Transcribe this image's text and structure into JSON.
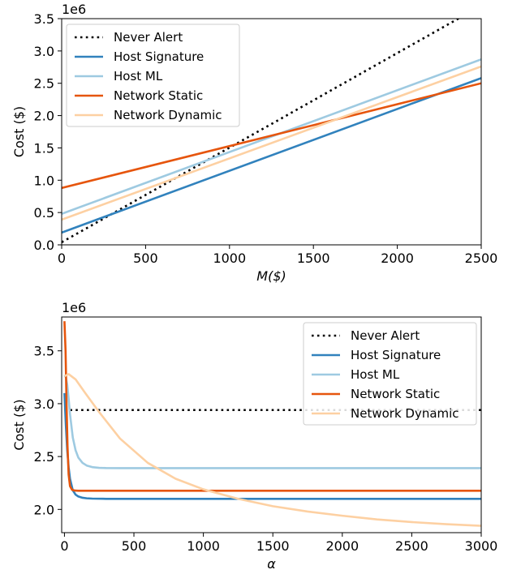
{
  "chart_data": [
    {
      "type": "line",
      "offset_text": "1e6",
      "xlabel": "M($)",
      "ylabel": "Cost ($)",
      "xlim": [
        0,
        2500
      ],
      "ylim": [
        0,
        3500000
      ],
      "x_ticks": [
        0,
        500,
        1000,
        1500,
        2000,
        2500
      ],
      "y_ticks": [
        0,
        500000,
        1000000,
        1500000,
        2000000,
        2500000,
        3000000,
        3500000
      ],
      "x_tick_labels": [
        "0",
        "500",
        "1000",
        "1500",
        "2000",
        "2500"
      ],
      "y_tick_labels": [
        "0.0",
        "0.5",
        "1.0",
        "1.5",
        "2.0",
        "2.5",
        "3.0",
        "3.5"
      ],
      "grid": false,
      "legend_position": "top-left",
      "series": [
        {
          "name": "Never Alert",
          "color": "#000000",
          "style": "dotted",
          "x": [
            0,
            2500
          ],
          "y": [
            40000,
            3700000
          ]
        },
        {
          "name": "Host Signature",
          "color": "#3182bd",
          "style": "solid",
          "x": [
            0,
            2500
          ],
          "y": [
            190000,
            2580000
          ]
        },
        {
          "name": "Host ML",
          "color": "#9ecae1",
          "style": "solid",
          "x": [
            0,
            2500
          ],
          "y": [
            480000,
            2870000
          ]
        },
        {
          "name": "Network Static",
          "color": "#e6550d",
          "style": "solid",
          "x": [
            0,
            2500
          ],
          "y": [
            880000,
            2500000
          ]
        },
        {
          "name": "Network Dynamic",
          "color": "#fdd0a2",
          "style": "solid",
          "x": [
            0,
            2500
          ],
          "y": [
            390000,
            2760000
          ]
        }
      ]
    },
    {
      "type": "line",
      "offset_text": "1e6",
      "xlabel": "α",
      "ylabel": "Cost ($)",
      "xlim": [
        -20,
        3000
      ],
      "ylim": [
        1780000,
        3820000
      ],
      "x_ticks": [
        0,
        500,
        1000,
        1500,
        2000,
        2500,
        3000
      ],
      "y_ticks": [
        2000000,
        2500000,
        3000000,
        3500000
      ],
      "x_tick_labels": [
        "0",
        "500",
        "1000",
        "1500",
        "2000",
        "2500",
        "3000"
      ],
      "y_tick_labels": [
        "2.0",
        "2.5",
        "3.0",
        "3.5"
      ],
      "grid": false,
      "legend_position": "top-right",
      "series": [
        {
          "name": "Never Alert",
          "color": "#000000",
          "style": "dotted",
          "x": [
            0,
            3000
          ],
          "y": [
            2940000,
            2940000
          ]
        },
        {
          "name": "Host Signature",
          "color": "#3182bd",
          "style": "solid",
          "x": [
            0,
            10,
            20,
            30,
            40,
            60,
            80,
            100,
            130,
            160,
            200,
            300,
            500,
            3000
          ],
          "y": [
            3100000,
            2800000,
            2560000,
            2400000,
            2290000,
            2180000,
            2140000,
            2122000,
            2110000,
            2105000,
            2102000,
            2100000,
            2100000,
            2100000
          ]
        },
        {
          "name": "Host ML",
          "color": "#9ecae1",
          "style": "solid",
          "x": [
            0,
            10,
            20,
            30,
            40,
            60,
            80,
            100,
            130,
            160,
            200,
            250,
            300,
            400,
            3000
          ],
          "y": [
            3270000,
            3250000,
            3180000,
            3050000,
            2900000,
            2680000,
            2560000,
            2490000,
            2440000,
            2415000,
            2400000,
            2393000,
            2391000,
            2390000,
            2390000
          ]
        },
        {
          "name": "Network Static",
          "color": "#e6550d",
          "style": "solid",
          "x": [
            0,
            8,
            15,
            22,
            30,
            40,
            55,
            75,
            100,
            3000
          ],
          "y": [
            3780000,
            3500000,
            3000000,
            2600000,
            2330000,
            2220000,
            2185000,
            2178000,
            2176000,
            2176000
          ]
        },
        {
          "name": "Network Dynamic",
          "color": "#fdd0a2",
          "style": "solid",
          "x": [
            0,
            30,
            80,
            150,
            250,
            400,
            600,
            800,
            1000,
            1250,
            1500,
            1750,
            2000,
            2250,
            2500,
            2750,
            3000
          ],
          "y": [
            3260000,
            3280000,
            3230000,
            3100000,
            2920000,
            2670000,
            2440000,
            2290000,
            2190000,
            2100000,
            2030000,
            1980000,
            1940000,
            1905000,
            1880000,
            1860000,
            1845000
          ]
        }
      ]
    }
  ]
}
